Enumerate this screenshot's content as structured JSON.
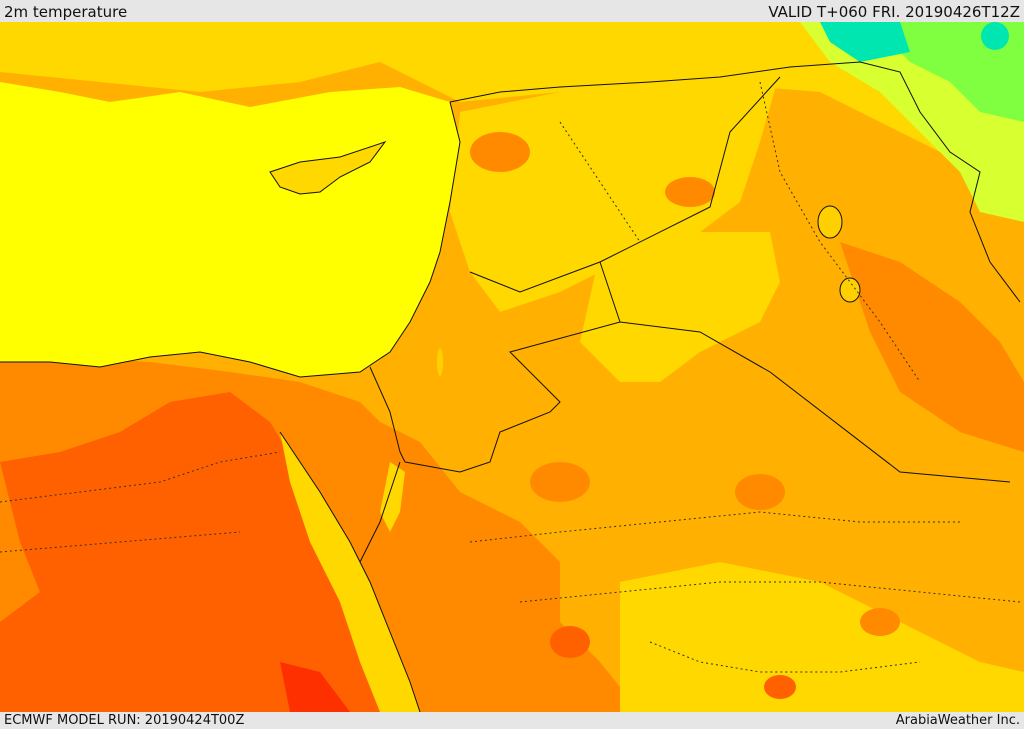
{
  "header": {
    "title": "2m temperature",
    "valid": "VALID T+060 FRI. 20190426T12Z"
  },
  "footer": {
    "model_run": "ECMWF MODEL RUN: 20190424T00Z",
    "credit": "ArabiaWeather Inc."
  },
  "map": {
    "colors": {
      "sea": "#ffff00",
      "mild": "#ffd800",
      "warm": "#ffb000",
      "hot": "#ff8a00",
      "hotter": "#ff6000",
      "hottest": "#ff3000",
      "cool": "#d8ff30",
      "cooler": "#80ff40",
      "coldest": "#00e6b0",
      "lake": "#ffd000",
      "border": "#111111"
    }
  }
}
